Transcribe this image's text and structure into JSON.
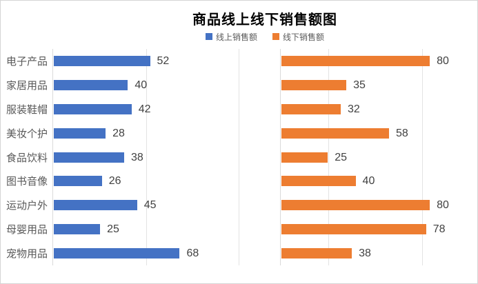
{
  "chart_data": {
    "type": "bar",
    "orientation": "horizontal",
    "title": "商品线上线下销售额图",
    "categories": [
      "电子产品",
      "家居用品",
      "服装鞋帽",
      "美妆个护",
      "食品饮料",
      "图书音像",
      "运动户外",
      "母婴用品",
      "宠物用品"
    ],
    "series": [
      {
        "name": "线上销售额",
        "color": "#4472C4",
        "values": [
          52,
          40,
          42,
          28,
          38,
          26,
          45,
          25,
          68
        ],
        "axis_max": 120,
        "gridlines": [
          50,
          100
        ]
      },
      {
        "name": "线下销售额",
        "color": "#ED7D31",
        "values": [
          80,
          35,
          32,
          58,
          25,
          40,
          80,
          78,
          38
        ],
        "axis_max": 106,
        "gridlines": [
          25.5,
          76
        ]
      }
    ],
    "data_labels": true,
    "legend_position": "top",
    "grid": true,
    "colors": {
      "track": "#f1f1f1",
      "gridline_gap": "#e3e3e3",
      "gridline_slit": "#ffffff",
      "axis_line": "#d9d9d9",
      "title_text": "#000000",
      "category_text": "#595959",
      "value_text": "#404040",
      "legend_text": "#595959",
      "border": "#d5d5d5"
    }
  }
}
